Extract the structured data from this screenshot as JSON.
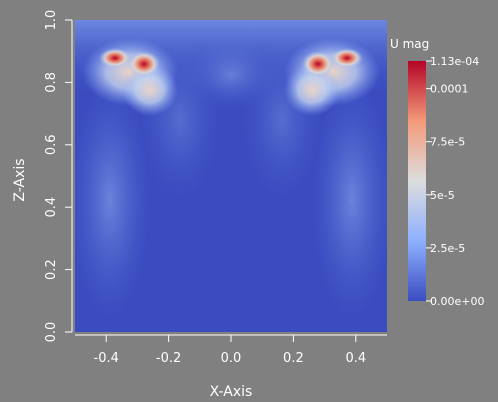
{
  "plot": {
    "x_axis_title": "X-Axis",
    "z_axis_title": "Z-Axis",
    "x_ticks": [
      "-0.4",
      "-0.2",
      "0.0",
      "0.2",
      "0.4"
    ],
    "x_tick_values": [
      -0.4,
      -0.2,
      0.0,
      0.2,
      0.4
    ],
    "z_ticks": [
      "0.0",
      "0.2",
      "0.4",
      "0.6",
      "0.8",
      "1.0"
    ],
    "z_tick_values": [
      0.0,
      0.2,
      0.4,
      0.6,
      0.8,
      1.0
    ],
    "x_range": [
      -0.5,
      0.5
    ],
    "z_range": [
      0.0,
      1.0
    ]
  },
  "colorbar": {
    "title": "U mag",
    "labels": [
      "1.13e-04",
      "0.0001",
      "7.5e-5",
      "5e-5",
      "2.5e-5",
      "0.00e+00"
    ],
    "label_values": [
      0.000113,
      0.0001,
      7.5e-05,
      5e-05,
      2.5e-05,
      0.0
    ],
    "range": [
      0.0,
      0.000113
    ],
    "colors": [
      "#3b4cc0",
      "#8db0fe",
      "#dddddd",
      "#f49a7b",
      "#b40426"
    ]
  },
  "colors": {
    "background": "#808080",
    "field_base": "#3b4cc0",
    "text": "#ffffff"
  }
}
